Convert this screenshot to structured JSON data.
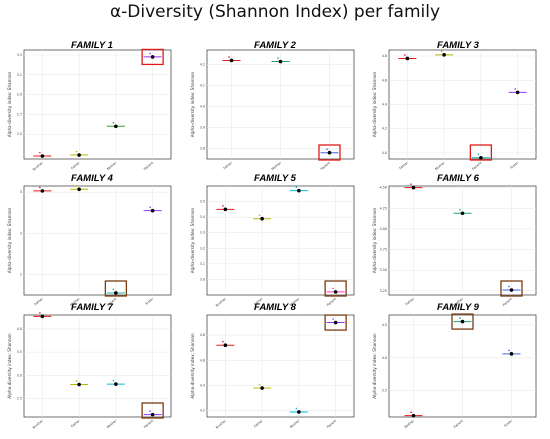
{
  "title": "α-Diversity (Shannon Index) per family",
  "colors": {
    "grid": "#e6e6e6",
    "frame": "#333333",
    "highlight_red": "#e01a1a",
    "highlight_brown": "#7a3b10",
    "median": "#000000"
  },
  "chart_data": [
    {
      "type": "scatter",
      "title": "FAMILY 1",
      "ylabel": "Alpha-diversity index: Shannon",
      "ylim": [
        2.25,
        3.35
      ],
      "yticks": [
        2.5,
        2.7,
        2.9,
        3.1,
        3.3
      ],
      "tick_decimals": 1,
      "categories": [
        "Brother",
        "Father",
        "Mother",
        "Patient"
      ],
      "values": [
        2.28,
        2.29,
        2.58,
        3.28
      ],
      "point_colors": [
        "#e41a1c",
        "#b8b800",
        "#2ca02c",
        "#9b30ff"
      ],
      "highlight": {
        "category": "Patient",
        "style": "red"
      },
      "grid": true
    },
    {
      "type": "scatter",
      "title": "FAMILY 2",
      "ylabel": "Alpha-diversity index: Shannon",
      "ylim": [
        3.75,
        4.27
      ],
      "yticks": [
        3.8,
        3.9,
        4.0,
        4.1,
        4.2
      ],
      "tick_decimals": 1,
      "categories": [
        "Father",
        "Mother",
        "Patient"
      ],
      "values": [
        4.22,
        4.215,
        3.78
      ],
      "point_colors": [
        "#e41a1c",
        "#1aa57a",
        "#4169e1"
      ],
      "highlight": {
        "category": "Patient",
        "style": "red"
      },
      "grid": true
    },
    {
      "type": "scatter",
      "title": "FAMILY 3",
      "ylabel": "Alpha-diversity index: Shannon",
      "ylim": [
        3.95,
        4.85
      ],
      "yticks": [
        4.0,
        4.2,
        4.4,
        4.6,
        4.8
      ],
      "tick_decimals": 1,
      "categories": [
        "Father",
        "Mother",
        "Patient",
        "Sister"
      ],
      "values": [
        4.78,
        4.81,
        3.96,
        4.5
      ],
      "point_colors": [
        "#e41a1c",
        "#b8b800",
        "#20b2aa",
        "#9b30ff"
      ],
      "highlight": {
        "category": "Patient",
        "style": "red"
      },
      "grid": true
    },
    {
      "type": "scatter",
      "title": "FAMILY 4",
      "ylabel": "Alpha-diversity index: Shannon",
      "ylim": [
        1.5,
        4.15
      ],
      "yticks": [
        2,
        3,
        4
      ],
      "tick_decimals": 0,
      "categories": [
        "Father",
        "Mother",
        "Patient",
        "Sister"
      ],
      "values": [
        4.03,
        4.07,
        1.55,
        3.55
      ],
      "point_colors": [
        "#e41a1c",
        "#b8b800",
        "#20b2aa",
        "#9b30ff"
      ],
      "highlight": {
        "category": "Patient",
        "style": "brown"
      },
      "grid": true
    },
    {
      "type": "scatter",
      "title": "FAMILY 5",
      "ylabel": "Alpha-diversity index: Shannon",
      "ylim": [
        2.9,
        3.6
      ],
      "yticks": [
        3.0,
        3.1,
        3.2,
        3.3,
        3.4,
        3.5
      ],
      "tick_decimals": 1,
      "categories": [
        "Brother",
        "Father",
        "Mother",
        "Patient"
      ],
      "values": [
        3.45,
        3.39,
        3.57,
        2.92
      ],
      "point_colors": [
        "#e41a1c",
        "#b8b800",
        "#00bcd4",
        "#ff33cc"
      ],
      "highlight": {
        "category": "Patient",
        "style": "brown"
      },
      "grid": true
    },
    {
      "type": "scatter",
      "title": "FAMILY 6",
      "ylabel": "Alpha-diversity index: Shannon",
      "ylim": [
        3.2,
        4.52
      ],
      "yticks": [
        3.25,
        3.5,
        3.75,
        4.0,
        4.25,
        4.5
      ],
      "tick_decimals": 2,
      "categories": [
        "Father",
        "Mother",
        "Patient"
      ],
      "values": [
        4.5,
        4.19,
        3.26
      ],
      "point_colors": [
        "#e41a1c",
        "#1aa57a",
        "#4169e1"
      ],
      "highlight": {
        "category": "Patient",
        "style": "brown"
      },
      "grid": true
    },
    {
      "type": "scatter",
      "title": "FAMILY 7",
      "ylabel": "Alpha-diversity index: Shannon",
      "ylim": [
        2.1,
        4.3
      ],
      "yticks": [
        2.5,
        3.0,
        3.5,
        4.0
      ],
      "tick_decimals": 1,
      "categories": [
        "Brother",
        "Father",
        "Mother",
        "Patient"
      ],
      "values": [
        4.27,
        2.8,
        2.81,
        2.15
      ],
      "point_colors": [
        "#e41a1c",
        "#b8b800",
        "#00bcd4",
        "#9b30ff"
      ],
      "highlight": {
        "category": "Patient",
        "style": "brown"
      },
      "grid": true
    },
    {
      "type": "scatter",
      "title": "FAMILY 8",
      "ylabel": "Alpha-diversity index: Shannon",
      "ylim": [
        4.15,
        4.96
      ],
      "yticks": [
        4.2,
        4.4,
        4.6,
        4.8
      ],
      "tick_decimals": 1,
      "categories": [
        "Brother",
        "Father",
        "Mother",
        "Patient"
      ],
      "values": [
        4.72,
        4.38,
        4.19,
        4.9
      ],
      "point_colors": [
        "#e41a1c",
        "#b8b800",
        "#00bcd4",
        "#9b30ff"
      ],
      "highlight": {
        "category": "Patient",
        "style": "brown"
      },
      "grid": true
    },
    {
      "type": "scatter",
      "title": "FAMILY 9",
      "ylabel": "Alpha-diversity index: Shannon",
      "ylim": [
        3.1,
        4.65
      ],
      "yticks": [
        3.5,
        4.0,
        4.5
      ],
      "tick_decimals": 1,
      "categories": [
        "Mother",
        "Patient",
        "Sister"
      ],
      "values": [
        3.12,
        4.55,
        4.06
      ],
      "point_colors": [
        "#e41a1c",
        "#1aa57a",
        "#4169e1"
      ],
      "highlight": {
        "category": "Patient",
        "style": "brown"
      },
      "grid": true
    }
  ]
}
